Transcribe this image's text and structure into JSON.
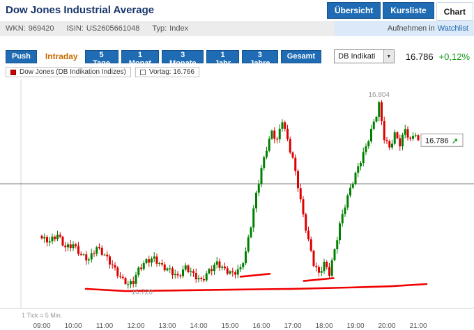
{
  "header": {
    "title": "Dow Jones Industrial Average",
    "tabs": [
      {
        "label": "Übersicht",
        "active": false
      },
      {
        "label": "Kursliste",
        "active": false
      },
      {
        "label": "Chart",
        "active": true
      }
    ]
  },
  "infobar": {
    "wkn_label": "WKN:",
    "wkn_value": "969420",
    "isin_label": "ISIN:",
    "isin_value": "US2605661048",
    "typ_label": "Typ:",
    "typ_value": "Index",
    "watchlist_prefix": "Aufnehmen in",
    "watchlist_link": "Watchlist"
  },
  "toolbar": {
    "push_label": "Push",
    "active_period": "Intraday",
    "periods": [
      "5 Tage",
      "1 Monat",
      "3 Monate",
      "1 Jahr",
      "3 Jahre",
      "Gesamt"
    ],
    "indicator_select": "DB Indikati",
    "price": "16.786",
    "change": "+0,12%"
  },
  "legend": {
    "series_label": "Dow Jones (DB Indikation Indizes)",
    "vortag_label": "Vortag: 16.766"
  },
  "chart_footer": {
    "tick_note": "1 Tick = 5 Min."
  },
  "colors": {
    "accent_blue": "#1f6cb4",
    "title_navy": "#17356b",
    "active_period_orange": "#c96a00",
    "positive_green": "#1b9b1b",
    "candle_up": "#008000",
    "candle_down": "#dd0000",
    "previous_close_line": "#7e7e7e",
    "drawn_line_red": "#f00000",
    "annotation_gray": "#999999",
    "axis_gray": "#d5d5d5"
  },
  "chart_data": {
    "type": "candlestick",
    "title": "Dow Jones Industrial Average Intraday",
    "x_unit": "minutes_from_09:00",
    "tick_interval_min": 5,
    "xlim_minutes": [
      0,
      720
    ],
    "ylim": [
      16715,
      16810
    ],
    "previous_close": 16766,
    "last_price": 16786,
    "day_high": 16804,
    "day_low": 16720,
    "x_ticks": [
      {
        "t": 0,
        "label": "09:00"
      },
      {
        "t": 60,
        "label": "10:00"
      },
      {
        "t": 120,
        "label": "11:00"
      },
      {
        "t": 180,
        "label": "12:00"
      },
      {
        "t": 240,
        "label": "13:00"
      },
      {
        "t": 300,
        "label": "14:00"
      },
      {
        "t": 360,
        "label": "15:00"
      },
      {
        "t": 420,
        "label": "16:00"
      },
      {
        "t": 480,
        "label": "17:00"
      },
      {
        "t": 540,
        "label": "18:00"
      },
      {
        "t": 600,
        "label": "19:00"
      },
      {
        "t": 660,
        "label": "20:00"
      },
      {
        "t": 720,
        "label": "21:00"
      }
    ],
    "close_anchors": [
      [
        0,
        16741
      ],
      [
        15,
        16739
      ],
      [
        30,
        16742
      ],
      [
        45,
        16737
      ],
      [
        60,
        16739
      ],
      [
        75,
        16734
      ],
      [
        90,
        16731
      ],
      [
        105,
        16736
      ],
      [
        120,
        16733
      ],
      [
        135,
        16729
      ],
      [
        150,
        16724
      ],
      [
        165,
        16720
      ],
      [
        175,
        16721
      ],
      [
        185,
        16726
      ],
      [
        200,
        16730
      ],
      [
        215,
        16732
      ],
      [
        230,
        16729
      ],
      [
        245,
        16727
      ],
      [
        260,
        16723
      ],
      [
        275,
        16727
      ],
      [
        290,
        16724
      ],
      [
        305,
        16722
      ],
      [
        320,
        16727
      ],
      [
        335,
        16730
      ],
      [
        350,
        16726
      ],
      [
        365,
        16724
      ],
      [
        380,
        16727
      ],
      [
        390,
        16735
      ],
      [
        400,
        16748
      ],
      [
        410,
        16762
      ],
      [
        420,
        16773
      ],
      [
        430,
        16782
      ],
      [
        440,
        16789
      ],
      [
        450,
        16785
      ],
      [
        460,
        16795
      ],
      [
        470,
        16786
      ],
      [
        480,
        16778
      ],
      [
        490,
        16766
      ],
      [
        500,
        16752
      ],
      [
        510,
        16740
      ],
      [
        520,
        16729
      ],
      [
        530,
        16724
      ],
      [
        540,
        16729
      ],
      [
        550,
        16725
      ],
      [
        560,
        16736
      ],
      [
        570,
        16748
      ],
      [
        580,
        16757
      ],
      [
        590,
        16764
      ],
      [
        600,
        16770
      ],
      [
        610,
        16776
      ],
      [
        620,
        16782
      ],
      [
        630,
        16790
      ],
      [
        640,
        16798
      ],
      [
        645,
        16803
      ],
      [
        650,
        16795
      ],
      [
        655,
        16788
      ],
      [
        665,
        16783
      ],
      [
        675,
        16789
      ],
      [
        685,
        16784
      ],
      [
        695,
        16790
      ],
      [
        705,
        16785
      ],
      [
        715,
        16789
      ],
      [
        720,
        16786
      ]
    ],
    "annotations": {
      "high_label": {
        "text": "16.804",
        "t": 645
      },
      "low_label": {
        "text": "16.720",
        "t": 165
      },
      "last_label": {
        "text": "16.786",
        "price": 16786
      }
    },
    "drawn_lines": [
      {
        "points": [
          [
            84,
            16717.9
          ],
          [
            160,
            16716.9
          ],
          [
            267,
            16717.2
          ],
          [
            373,
            16717.6
          ],
          [
            480,
            16717.9
          ],
          [
            587,
            16718.5
          ],
          [
            667,
            16719.1
          ],
          [
            736,
            16720.1
          ]
        ]
      },
      {
        "points": [
          [
            380,
            16723.5
          ],
          [
            436,
            16724.8
          ]
        ]
      },
      {
        "points": [
          [
            501,
            16721.5
          ],
          [
            558,
            16722.8
          ]
        ]
      }
    ]
  }
}
